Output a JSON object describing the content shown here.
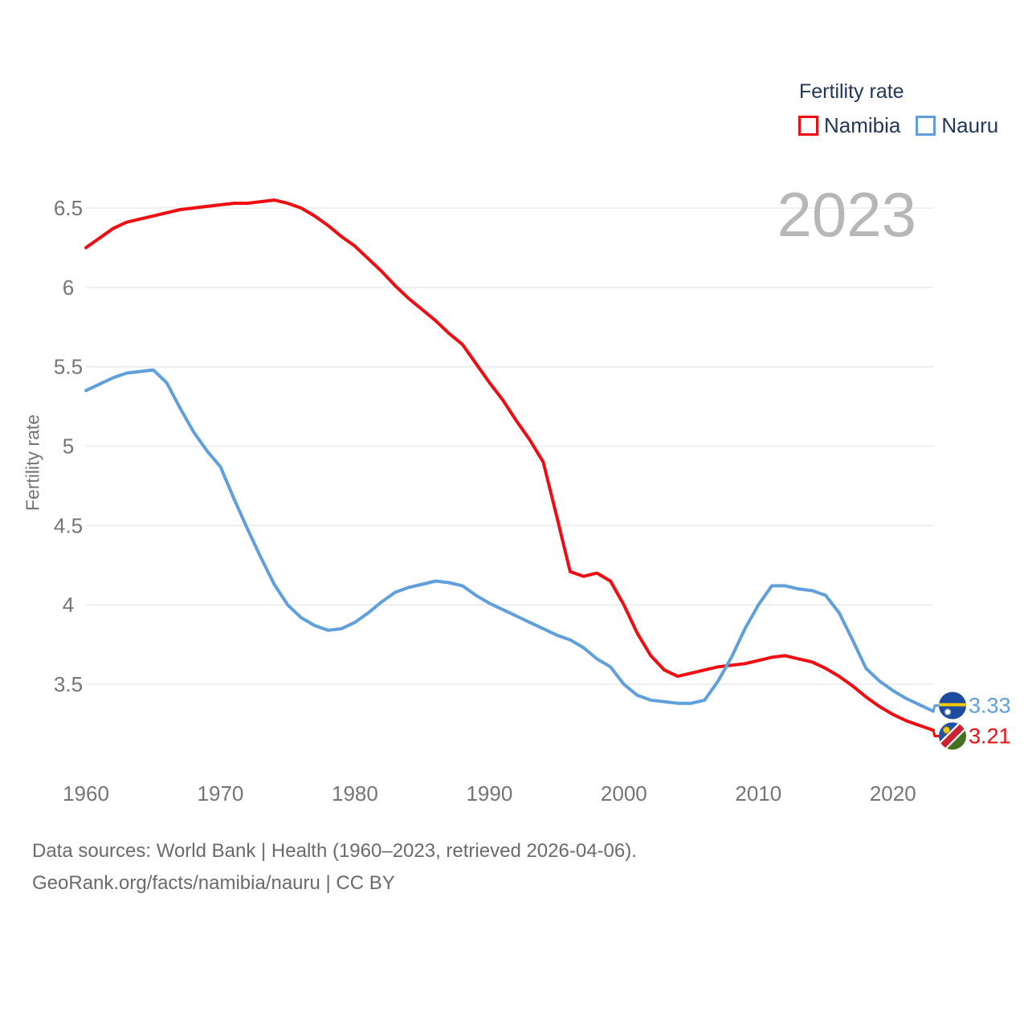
{
  "legend": {
    "title": "Fertility rate",
    "items": [
      {
        "label": "Namibia",
        "color": "#f10c12"
      },
      {
        "label": "Nauru",
        "color": "#5f9fdb"
      }
    ]
  },
  "watermark": "2023",
  "y_axis": {
    "title": "Fertility rate",
    "ticks": [
      "3.5",
      "4",
      "4.5",
      "5",
      "5.5",
      "6",
      "6.5"
    ]
  },
  "x_axis": {
    "ticks": [
      "1960",
      "1970",
      "1980",
      "1990",
      "2000",
      "2010",
      "2020"
    ]
  },
  "footer": {
    "line1": "Data sources: World Bank | Health (1960–2023, retrieved 2026-04-06).",
    "line2": "GeoRank.org/facts/namibia/nauru | CC BY"
  },
  "chart_data": {
    "type": "line",
    "title": "Fertility rate",
    "xlabel": "",
    "ylabel": "Fertility rate",
    "ylim": [
      3.2,
      6.6
    ],
    "xlim": [
      1960,
      2023
    ],
    "grid": true,
    "legend_position": "top-right",
    "x": [
      1960,
      1961,
      1962,
      1963,
      1964,
      1965,
      1966,
      1967,
      1968,
      1969,
      1970,
      1971,
      1972,
      1973,
      1974,
      1975,
      1976,
      1977,
      1978,
      1979,
      1980,
      1981,
      1982,
      1983,
      1984,
      1985,
      1986,
      1987,
      1988,
      1989,
      1990,
      1991,
      1992,
      1993,
      1994,
      1995,
      1996,
      1997,
      1998,
      1999,
      2000,
      2001,
      2002,
      2003,
      2004,
      2005,
      2006,
      2007,
      2008,
      2009,
      2010,
      2011,
      2012,
      2013,
      2014,
      2015,
      2016,
      2017,
      2018,
      2019,
      2020,
      2021,
      2022,
      2023
    ],
    "series": [
      {
        "name": "Namibia",
        "color": "#f10c12",
        "end_label": "3.21",
        "values": [
          6.25,
          6.31,
          6.37,
          6.41,
          6.43,
          6.45,
          6.47,
          6.49,
          6.5,
          6.51,
          6.52,
          6.53,
          6.53,
          6.54,
          6.55,
          6.53,
          6.5,
          6.45,
          6.39,
          6.32,
          6.26,
          6.18,
          6.1,
          6.01,
          5.93,
          5.86,
          5.79,
          5.71,
          5.64,
          5.52,
          5.4,
          5.29,
          5.16,
          5.04,
          4.9,
          4.56,
          4.21,
          4.18,
          4.2,
          4.15,
          4.0,
          3.82,
          3.68,
          3.59,
          3.55,
          3.57,
          3.59,
          3.61,
          3.62,
          3.63,
          3.65,
          3.67,
          3.68,
          3.66,
          3.64,
          3.6,
          3.55,
          3.49,
          3.42,
          3.36,
          3.31,
          3.27,
          3.24,
          3.21
        ]
      },
      {
        "name": "Nauru",
        "color": "#5f9fdb",
        "end_label": "3.33",
        "values": [
          5.35,
          5.39,
          5.43,
          5.46,
          5.47,
          5.48,
          5.4,
          5.24,
          5.09,
          4.97,
          4.87,
          4.67,
          4.48,
          4.3,
          4.13,
          4.0,
          3.92,
          3.87,
          3.84,
          3.85,
          3.89,
          3.95,
          4.02,
          4.08,
          4.11,
          4.13,
          4.15,
          4.14,
          4.12,
          4.06,
          4.01,
          3.97,
          3.93,
          3.89,
          3.85,
          3.81,
          3.78,
          3.73,
          3.66,
          3.61,
          3.5,
          3.43,
          3.4,
          3.39,
          3.38,
          3.38,
          3.4,
          3.52,
          3.67,
          3.85,
          4.0,
          4.12,
          4.12,
          4.1,
          4.09,
          4.06,
          3.95,
          3.78,
          3.6,
          3.52,
          3.46,
          3.41,
          3.37,
          3.33
        ]
      }
    ]
  }
}
